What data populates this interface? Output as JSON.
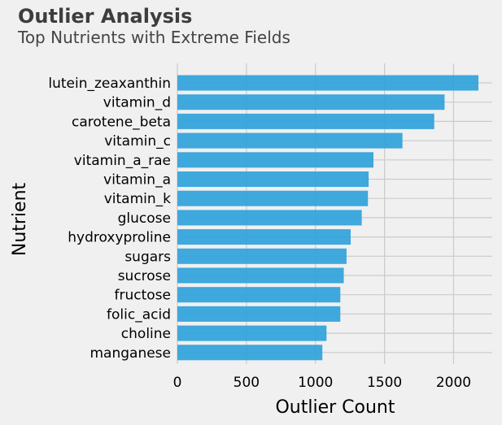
{
  "colors": {
    "background": "#f0f0f0",
    "bar": "#30a2da",
    "grid": "#cbcbcb",
    "text": "#000000",
    "title": "#3d3d3d"
  },
  "chart_data": {
    "type": "bar",
    "orientation": "horizontal",
    "title": "Outlier Analysis",
    "subtitle": "Top Nutrients with Extreme Fields",
    "xlabel": "Outlier Count",
    "ylabel": "Nutrient",
    "xlim": [
      0,
      2280
    ],
    "xticks": [
      0,
      500,
      1000,
      1500,
      2000
    ],
    "grid": true,
    "categories": [
      "lutein_zeaxanthin",
      "vitamin_d",
      "carotene_beta",
      "vitamin_c",
      "vitamin_a_rae",
      "vitamin_a",
      "vitamin_k",
      "glucose",
      "hydroxyproline",
      "sugars",
      "sucrose",
      "fructose",
      "folic_acid",
      "choline",
      "manganese"
    ],
    "values": [
      2180,
      1935,
      1860,
      1630,
      1420,
      1385,
      1380,
      1335,
      1255,
      1225,
      1205,
      1180,
      1180,
      1080,
      1050
    ]
  }
}
